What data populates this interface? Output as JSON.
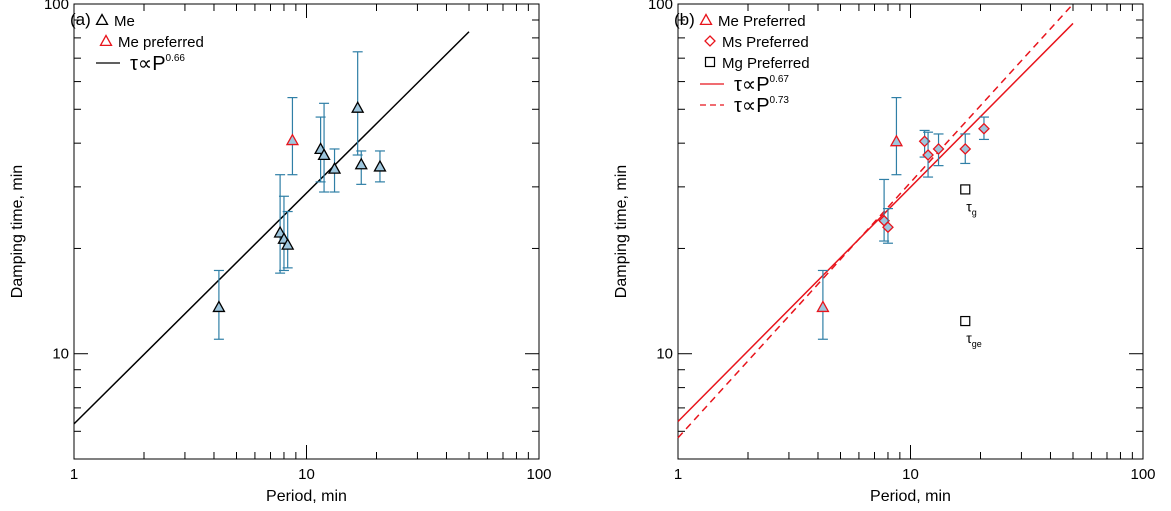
{
  "chart_data": [
    {
      "type": "scatter",
      "panel_label": "(a)",
      "xlabel": "Period, min",
      "ylabel": "Damping time, min",
      "xscale": "log",
      "yscale": "log",
      "xlim": [
        1,
        100
      ],
      "ylim": [
        5,
        100
      ],
      "xticks": [
        1,
        10,
        100
      ],
      "xtick_labels": [
        "1",
        "10",
        "100"
      ],
      "yticks": [
        10,
        100
      ],
      "ytick_labels": [
        "10",
        "100"
      ],
      "legend_position": "top-left",
      "legend": [
        {
          "symbol": "triangle",
          "color": "#000000",
          "label": "Me"
        },
        {
          "symbol": "triangle",
          "color": "#e8141c",
          "label": "Me preferred"
        },
        {
          "symbol": "line-solid",
          "color": "#000000",
          "label_base": "τ∝P",
          "label_exp": "0.66"
        }
      ],
      "errorbar_color": "#2f7fa6",
      "marker_fill": "#9ec6dd",
      "points": [
        {
          "x": 4.2,
          "y": 13.6,
          "ylow": 11.0,
          "yhigh": 17.3,
          "marker": "triangle",
          "color": "#000000"
        },
        {
          "x": 7.7,
          "y": 22.2,
          "ylow": 17.0,
          "yhigh": 32.5,
          "marker": "triangle",
          "color": "#000000"
        },
        {
          "x": 8.0,
          "y": 21.3,
          "ylow": 17.3,
          "yhigh": 28.2,
          "marker": "triangle",
          "color": "#000000"
        },
        {
          "x": 8.3,
          "y": 20.5,
          "ylow": 17.6,
          "yhigh": 25.5,
          "marker": "triangle",
          "color": "#000000"
        },
        {
          "x": 8.7,
          "y": 40.8,
          "ylow": 32.5,
          "yhigh": 54.0,
          "marker": "triangle",
          "color": "#e8141c"
        },
        {
          "x": 11.5,
          "y": 38.5,
          "ylow": 31.0,
          "yhigh": 47.5,
          "marker": "triangle",
          "color": "#000000"
        },
        {
          "x": 11.9,
          "y": 37.0,
          "ylow": 29.0,
          "yhigh": 52.0,
          "marker": "triangle",
          "color": "#000000"
        },
        {
          "x": 13.2,
          "y": 33.8,
          "ylow": 29.0,
          "yhigh": 38.5,
          "marker": "triangle",
          "color": "#000000"
        },
        {
          "x": 16.6,
          "y": 50.5,
          "ylow": 37.0,
          "yhigh": 73.0,
          "marker": "triangle",
          "color": "#000000"
        },
        {
          "x": 17.2,
          "y": 34.8,
          "ylow": 30.5,
          "yhigh": 38.0,
          "marker": "triangle",
          "color": "#000000"
        },
        {
          "x": 20.7,
          "y": 34.3,
          "ylow": 31.0,
          "yhigh": 38.0,
          "marker": "triangle",
          "color": "#000000"
        }
      ],
      "fits": [
        {
          "coef": 6.3,
          "exponent": 0.66,
          "x_range": [
            1,
            50
          ],
          "color": "#000000",
          "dash": "solid"
        }
      ]
    },
    {
      "type": "scatter",
      "panel_label": "(b)",
      "xlabel": "Period, min",
      "ylabel": "Damping time, min",
      "xscale": "log",
      "yscale": "log",
      "xlim": [
        1,
        100
      ],
      "ylim": [
        5,
        100
      ],
      "xticks": [
        1,
        10,
        100
      ],
      "xtick_labels": [
        "1",
        "10",
        "100"
      ],
      "yticks": [
        10,
        100
      ],
      "ytick_labels": [
        "10",
        "100"
      ],
      "legend_position": "top-left",
      "legend": [
        {
          "symbol": "triangle",
          "color": "#e8141c",
          "label": "Me Preferred"
        },
        {
          "symbol": "diamond",
          "color": "#e8141c",
          "label": "Ms Preferred"
        },
        {
          "symbol": "square",
          "color": "#000000",
          "label": "Mg Preferred"
        },
        {
          "symbol": "line-solid",
          "color": "#e8141c",
          "label_base": "τ∝P",
          "label_exp": "0.67"
        },
        {
          "symbol": "line-dashed",
          "color": "#e8141c",
          "label_base": "τ∝P",
          "label_exp": "0.73"
        }
      ],
      "errorbar_color": "#2f7fa6",
      "marker_fill": "#9ec6dd",
      "points": [
        {
          "x": 4.2,
          "y": 13.6,
          "ylow": 11.0,
          "yhigh": 17.3,
          "marker": "triangle",
          "color": "#e8141c"
        },
        {
          "x": 7.7,
          "y": 24.0,
          "ylow": 21.0,
          "yhigh": 31.5,
          "marker": "diamond",
          "color": "#e8141c"
        },
        {
          "x": 8.0,
          "y": 23.0,
          "ylow": 20.7,
          "yhigh": 26.0,
          "marker": "diamond",
          "color": "#e8141c"
        },
        {
          "x": 8.7,
          "y": 40.5,
          "ylow": 32.5,
          "yhigh": 54.0,
          "marker": "triangle",
          "color": "#e8141c"
        },
        {
          "x": 11.5,
          "y": 40.5,
          "ylow": 36.5,
          "yhigh": 43.5,
          "marker": "diamond",
          "color": "#e8141c"
        },
        {
          "x": 11.9,
          "y": 37.0,
          "ylow": 32.0,
          "yhigh": 43.0,
          "marker": "diamond",
          "color": "#e8141c"
        },
        {
          "x": 13.2,
          "y": 38.5,
          "ylow": 34.5,
          "yhigh": 42.5,
          "marker": "diamond",
          "color": "#e8141c"
        },
        {
          "x": 17.2,
          "y": 38.5,
          "ylow": 35.0,
          "yhigh": 42.5,
          "marker": "diamond",
          "color": "#e8141c"
        },
        {
          "x": 20.7,
          "y": 44.0,
          "ylow": 41.0,
          "yhigh": 47.5,
          "marker": "diamond",
          "color": "#e8141c"
        }
      ],
      "extra_points": [
        {
          "x": 17.2,
          "y": 29.5,
          "marker": "square",
          "color": "#000000",
          "label": "τ",
          "sub": "g"
        },
        {
          "x": 17.2,
          "y": 12.4,
          "marker": "square",
          "color": "#000000",
          "label": "τ",
          "sub": "ge"
        }
      ],
      "fits": [
        {
          "coef": 6.4,
          "exponent": 0.67,
          "x_range": [
            1,
            50
          ],
          "color": "#e8141c",
          "dash": "solid"
        },
        {
          "coef": 5.75,
          "exponent": 0.73,
          "x_range": [
            1,
            50
          ],
          "color": "#e8141c",
          "dash": "dashed"
        }
      ]
    }
  ]
}
